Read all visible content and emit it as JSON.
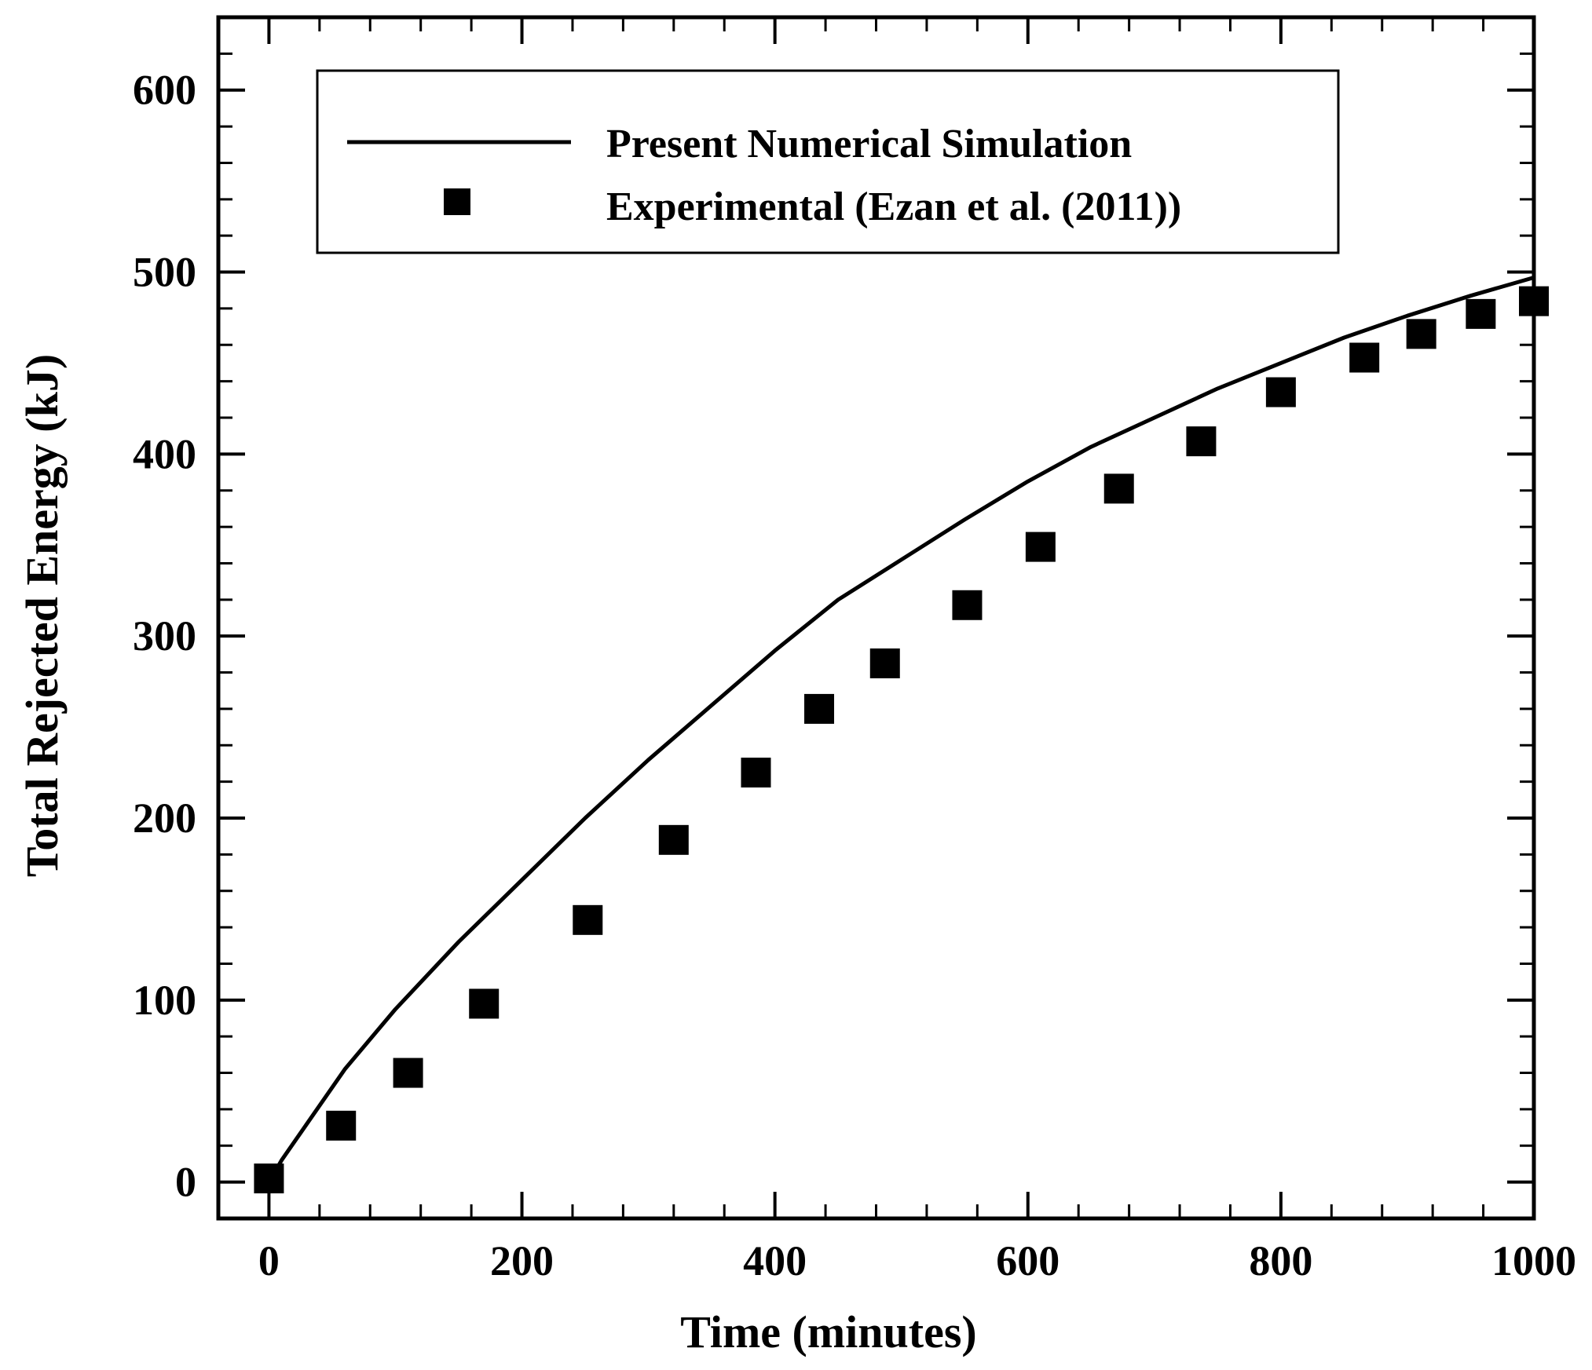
{
  "chart_data": {
    "type": "line",
    "title": "",
    "xlabel": "Time (minutes)",
    "ylabel": "Total Rejected Energy (kJ)",
    "xlim": [
      -40,
      1000
    ],
    "ylim": [
      -20,
      640
    ],
    "x_ticks": [
      0,
      200,
      400,
      600,
      800,
      1000
    ],
    "x_tick_labels": [
      "0",
      "200",
      "400",
      "600",
      "800",
      "1000"
    ],
    "y_ticks": [
      0,
      100,
      200,
      300,
      400,
      500,
      600
    ],
    "y_tick_labels": [
      "0",
      "100",
      "200",
      "300",
      "400",
      "500",
      "600"
    ],
    "grid": false,
    "legend_position": "top",
    "series": [
      {
        "name": "Present Numerical Simulation",
        "style": "line",
        "color": "#000000",
        "x": [
          0,
          10,
          30,
          60,
          100,
          150,
          200,
          250,
          300,
          350,
          400,
          450,
          500,
          550,
          600,
          650,
          700,
          750,
          800,
          850,
          900,
          950,
          1000
        ],
        "y": [
          0,
          12,
          32,
          62,
          95,
          132,
          166,
          200,
          232,
          262,
          292,
          320,
          342,
          364,
          385,
          404,
          420,
          436,
          450,
          464,
          476,
          487,
          497
        ]
      },
      {
        "name": "Experimental (Ezan et al. (2011))",
        "style": "marker",
        "marker": "square",
        "color": "#000000",
        "x": [
          0,
          57,
          110,
          170,
          252,
          320,
          385,
          435,
          487,
          552,
          610,
          672,
          737,
          800,
          866,
          911,
          958,
          1000
        ],
        "y": [
          2,
          31,
          60,
          98,
          144,
          188,
          225,
          260,
          285,
          317,
          349,
          381,
          407,
          434,
          453,
          466,
          477,
          484
        ]
      }
    ]
  }
}
